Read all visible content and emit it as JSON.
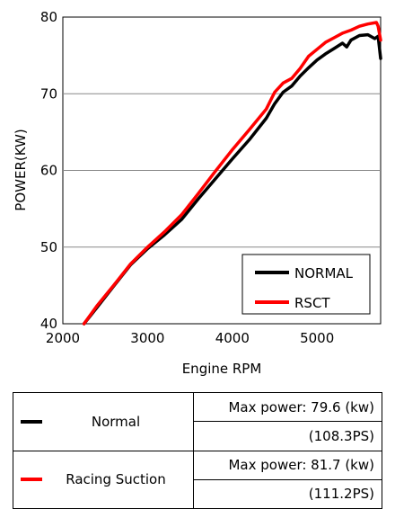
{
  "chart_data": {
    "type": "line",
    "xlabel": "Engine RPM",
    "ylabel": "POWER(KW)",
    "xlim": [
      2000,
      5750
    ],
    "ylim": [
      40,
      80
    ],
    "xticks": [
      "2000",
      "3000",
      "4000",
      "5000"
    ],
    "yticks": [
      "40",
      "50",
      "60",
      "70",
      "80"
    ],
    "grid": "horizontal",
    "legend_position": "bottom-right",
    "series": [
      {
        "name": "NORMAL",
        "color": "#000000",
        "x": [
          2250,
          2400,
          2600,
          2800,
          3000,
          3200,
          3400,
          3600,
          3800,
          4000,
          4200,
          4400,
          4500,
          4600,
          4700,
          4800,
          4900,
          5000,
          5100,
          5200,
          5300,
          5350,
          5400,
          5500,
          5600,
          5680,
          5720,
          5750
        ],
        "y": [
          40,
          42.1,
          44.9,
          47.7,
          49.8,
          51.6,
          53.6,
          56.3,
          58.9,
          61.5,
          64.0,
          66.8,
          68.7,
          70.2,
          71.0,
          72.3,
          73.4,
          74.4,
          75.2,
          75.9,
          76.6,
          76.1,
          77.0,
          77.6,
          77.7,
          77.2,
          77.5,
          74.6
        ]
      },
      {
        "name": "RSCT",
        "color": "#ff0000",
        "x": [
          2250,
          2400,
          2600,
          2800,
          3000,
          3200,
          3400,
          3600,
          3800,
          4000,
          4200,
          4400,
          4500,
          4600,
          4700,
          4800,
          4900,
          5000,
          5100,
          5200,
          5300,
          5400,
          5500,
          5600,
          5700,
          5720,
          5750
        ],
        "y": [
          40,
          42.3,
          45.0,
          47.8,
          50.0,
          52.0,
          54.2,
          57.0,
          59.9,
          62.7,
          65.3,
          68.0,
          70.2,
          71.4,
          72.0,
          73.3,
          74.9,
          75.8,
          76.7,
          77.3,
          77.9,
          78.3,
          78.8,
          79.1,
          79.3,
          78.8,
          77.0
        ]
      }
    ]
  },
  "summary": {
    "rows": [
      {
        "label": "Normal",
        "color": "#000000",
        "max_power": "Max power: 79.6 (kw)",
        "ps": "(108.3PS)"
      },
      {
        "label": "Racing Suction",
        "color": "#ff0000",
        "max_power": "Max power: 81.7 (kw)",
        "ps": "(111.2PS)"
      }
    ]
  }
}
